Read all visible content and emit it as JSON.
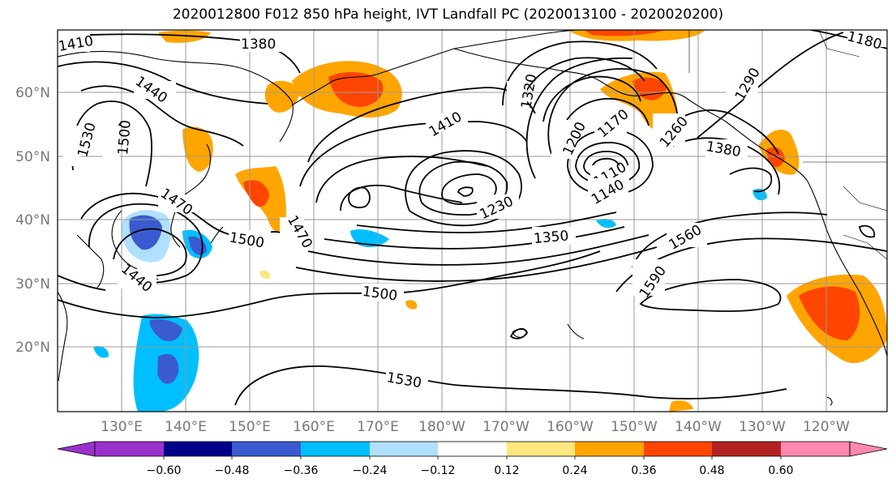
{
  "title": "2020012800 F012 850 hPa height, IVT Landfall PC (2020013100 - 2020020200)",
  "map": {
    "lat_labels": [
      "60°N",
      "50°N",
      "40°N",
      "30°N",
      "20°N"
    ],
    "lon_labels": [
      "130°E",
      "140°E",
      "150°E",
      "160°E",
      "170°E",
      "180°W",
      "170°W",
      "160°W",
      "150°W",
      "140°W",
      "130°W",
      "120°W"
    ],
    "contour_labels": [
      "1410",
      "1380",
      "1440",
      "1530",
      "1500",
      "1470",
      "1500",
      "1470",
      "1440",
      "1410",
      "1320",
      "1290",
      "1200",
      "1170",
      "1260",
      "1380",
      "1230",
      "1110",
      "1140",
      "1350",
      "1560",
      "1590",
      "1500",
      "1530",
      "1180"
    ],
    "contour_color": "#000000",
    "coast_color": "#000000",
    "grid_color": "#9a9a9a"
  },
  "colorbar": {
    "colors": [
      "#9932cc",
      "#00008b",
      "#3a5bd0",
      "#00bfff",
      "#b0e0ff",
      "#ffffff",
      "#ffffff",
      "#ffe680",
      "#ffa500",
      "#ff4500",
      "#b22222",
      "#ff88b0"
    ],
    "tick_labels": [
      "−0.60",
      "−0.48",
      "−0.36",
      "−0.24",
      "−0.12",
      "0.12",
      "0.24",
      "0.36",
      "0.48",
      "0.60"
    ],
    "extend": "both"
  }
}
